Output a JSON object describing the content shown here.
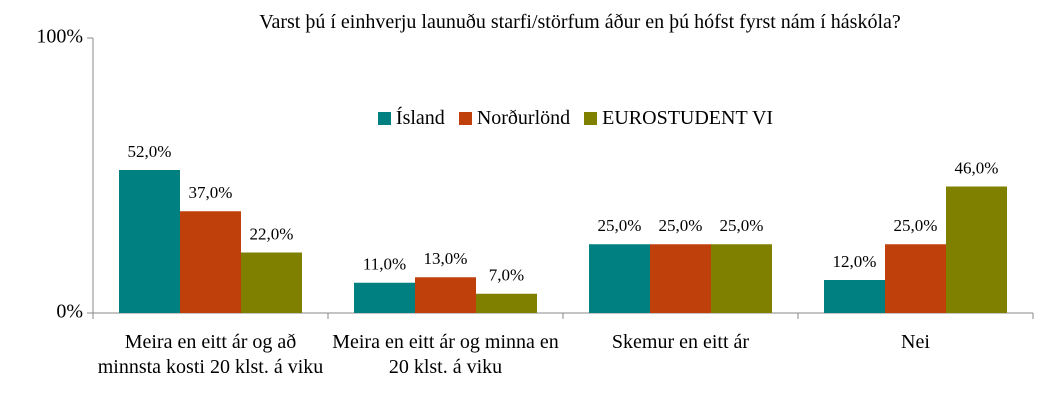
{
  "chart_data": {
    "type": "bar",
    "title": "Varst þú í einhverju launuðu starfi/störfum áður en þú hófst fyrst nám í háskóla?",
    "categories": [
      "Meira en eitt ár og að minnsta kosti 20 klst. á viku",
      "Meira en eitt ár og minna en 20 klst. á viku",
      "Skemur en eitt ár",
      "Nei"
    ],
    "series": [
      {
        "name": "Ísland",
        "color": "#008080",
        "values": [
          52,
          11,
          25,
          12
        ],
        "value_labels": [
          "52,0%",
          "11,0%",
          "25,0%",
          "12,0%"
        ]
      },
      {
        "name": "Norðurlönd",
        "color": "#c0400c",
        "values": [
          37,
          13,
          25,
          25
        ],
        "value_labels": [
          "37,0%",
          "13,0%",
          "25,0%",
          "25,0%"
        ]
      },
      {
        "name": "EUROSTUDENT VI",
        "color": "#808000",
        "values": [
          22,
          7,
          25,
          46
        ],
        "value_labels": [
          "22,0%",
          "7,0%",
          "25,0%",
          "46,0%"
        ]
      }
    ],
    "ylim": [
      0,
      100
    ],
    "yticks": [
      {
        "value": 0,
        "label": "0%"
      },
      {
        "value": 100,
        "label": "100%"
      }
    ],
    "legend": "top"
  }
}
